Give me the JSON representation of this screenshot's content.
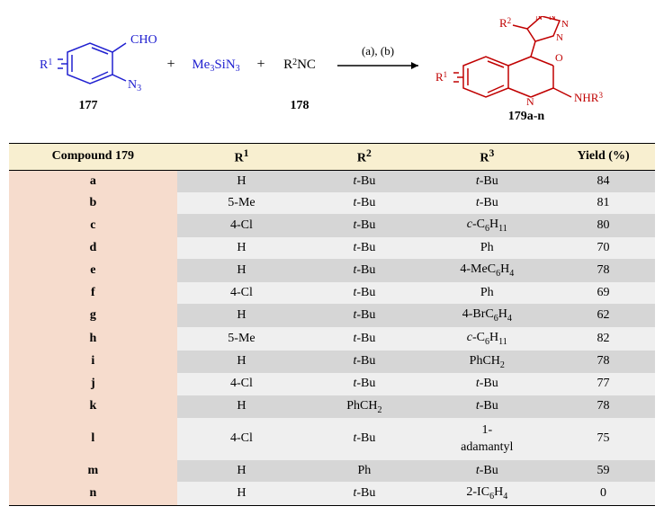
{
  "scheme": {
    "reagent1_label": "177",
    "reagent2_html": "Me<tspan baseline-shift='-3' font-size='10'>3</tspan>SiN<tspan baseline-shift='-3' font-size='10'>3</tspan>",
    "reagent3_html": "R<tspan baseline-shift='4' font-size='10'>2</tspan>NC",
    "reagent3_label": "178",
    "conditions": "(a), (b)",
    "product_label": "179a-n",
    "colors": {
      "blue": "#2020d0",
      "red": "#c00000",
      "black": "#000000"
    }
  },
  "columns": [
    {
      "label_html": "Compound 179",
      "width": "26%"
    },
    {
      "label_html": "R<sup>1</sup>",
      "width": "20%"
    },
    {
      "label_html": "R<sup>2</sup>",
      "width": "18%"
    },
    {
      "label_html": "R<sup>3</sup>",
      "width": "20%"
    },
    {
      "label_html": "Yield (%)",
      "width": "16%"
    }
  ],
  "header_bg": "#f8efd0",
  "firstcol_bg": "#f6dccd",
  "row_colors": [
    "#d6d6d6",
    "#efefef"
  ],
  "rows": [
    {
      "key": "a",
      "r1": "H",
      "r2": "<i>t</i>-Bu",
      "r3": "<i>t</i>-Bu",
      "yield": "84"
    },
    {
      "key": "b",
      "r1": "5-Me",
      "r2": "<i>t</i>-Bu",
      "r3": "<i>t</i>-Bu",
      "yield": "81"
    },
    {
      "key": "c",
      "r1": "4-Cl",
      "r2": "<i>t</i>-Bu",
      "r3": "<i>c</i>-C<sub class='sub'>6</sub>H<sub class='sub'>11</sub>",
      "yield": "80"
    },
    {
      "key": "d",
      "r1": "H",
      "r2": "<i>t</i>-Bu",
      "r3": "Ph",
      "yield": "70"
    },
    {
      "key": "e",
      "r1": "H",
      "r2": "<i>t</i>-Bu",
      "r3": "4-MeC<sub class='sub'>6</sub>H<sub class='sub'>4</sub>",
      "yield": "78"
    },
    {
      "key": "f",
      "r1": "4-Cl",
      "r2": "<i>t</i>-Bu",
      "r3": "Ph",
      "yield": "69"
    },
    {
      "key": "g",
      "r1": "H",
      "r2": "<i>t</i>-Bu",
      "r3": "4-BrC<sub class='sub'>6</sub>H<sub class='sub'>4</sub>",
      "yield": "62"
    },
    {
      "key": "h",
      "r1": "5-Me",
      "r2": "<i>t</i>-Bu",
      "r3": "<i>c</i>-C<sub class='sub'>6</sub>H<sub class='sub'>11</sub>",
      "yield": "82"
    },
    {
      "key": "i",
      "r1": "H",
      "r2": "<i>t</i>-Bu",
      "r3": "PhCH<sub class='sub'>2</sub>",
      "yield": "78"
    },
    {
      "key": "j",
      "r1": "4-Cl",
      "r2": "<i>t</i>-Bu",
      "r3": "<i>t</i>-Bu",
      "yield": "77"
    },
    {
      "key": "k",
      "r1": "H",
      "r2": "PhCH<sub class='sub'>2</sub>",
      "r3": "<i>t</i>-Bu",
      "yield": "78"
    },
    {
      "key": "l",
      "r1": "4-Cl",
      "r2": "<i>t</i>-Bu",
      "r3": "1-<br>adamantyl",
      "yield": "75",
      "tall": true
    },
    {
      "key": "m",
      "r1": "H",
      "r2": "Ph",
      "r3": "<i>t</i>-Bu",
      "yield": "59"
    },
    {
      "key": "n",
      "r1": "H",
      "r2": "<i>t</i>-Bu",
      "r3": "2-IC<sub class='sub'>6</sub>H<sub class='sub'>4</sub>",
      "yield": "0"
    }
  ]
}
